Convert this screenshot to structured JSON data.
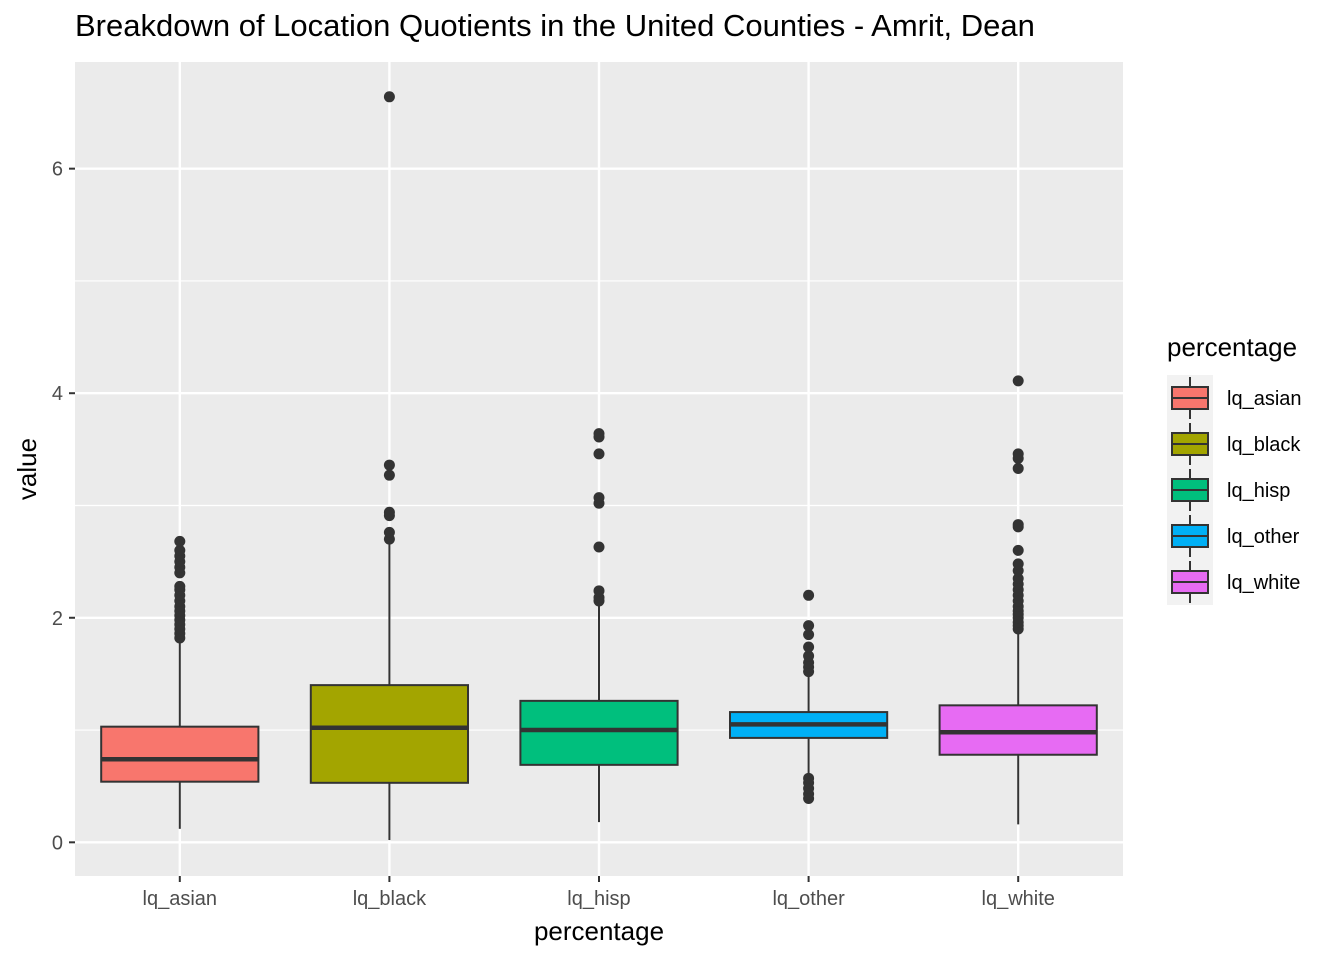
{
  "chart_data": {
    "type": "boxplot",
    "title": "Breakdown of Location Quotients in the United Counties - Amrit, Dean",
    "xlabel": "percentage",
    "ylabel": "value",
    "ylim": [
      -0.3,
      6.95
    ],
    "yticks": [
      0,
      2,
      4,
      6
    ],
    "grid": true,
    "legend": {
      "title": "percentage",
      "placement": "right"
    },
    "categories": [
      "lq_asian",
      "lq_black",
      "lq_hisp",
      "lq_other",
      "lq_white"
    ],
    "boxes": [
      {
        "name": "lq_asian",
        "color": "#F8766D",
        "whisker_low": 0.12,
        "q1": 0.54,
        "median": 0.74,
        "q3": 1.03,
        "whisker_high": 1.8,
        "outliers": [
          1.82,
          1.86,
          1.9,
          1.94,
          1.98,
          2.02,
          2.06,
          2.1,
          2.15,
          2.2,
          2.25,
          2.28,
          2.4,
          2.45,
          2.5,
          2.55,
          2.6,
          2.68
        ]
      },
      {
        "name": "lq_black",
        "color": "#A3A500",
        "whisker_low": 0.02,
        "q1": 0.53,
        "median": 1.02,
        "q3": 1.4,
        "whisker_high": 2.68,
        "outliers": [
          2.7,
          2.76,
          2.91,
          2.94,
          3.27,
          3.36,
          6.64
        ]
      },
      {
        "name": "lq_hisp",
        "color": "#00BF7D",
        "whisker_low": 0.18,
        "q1": 0.69,
        "median": 1.0,
        "q3": 1.26,
        "whisker_high": 2.12,
        "outliers": [
          2.15,
          2.18,
          2.24,
          2.63,
          3.02,
          3.07,
          3.46,
          3.61,
          3.64
        ]
      },
      {
        "name": "lq_other",
        "color": "#00B0F6",
        "whisker_low": 0.6,
        "q1": 0.93,
        "median": 1.05,
        "q3": 1.16,
        "whisker_high": 1.5,
        "outliers": [
          0.39,
          0.43,
          0.48,
          0.53,
          0.57,
          1.52,
          1.56,
          1.6,
          1.66,
          1.74,
          1.85,
          1.93,
          2.2
        ]
      },
      {
        "name": "lq_white",
        "color": "#E76BF3",
        "whisker_low": 0.16,
        "q1": 0.78,
        "median": 0.98,
        "q3": 1.22,
        "whisker_high": 1.88,
        "outliers": [
          1.9,
          1.93,
          1.96,
          2.0,
          2.03,
          2.06,
          2.1,
          2.15,
          2.2,
          2.25,
          2.3,
          2.35,
          2.42,
          2.48,
          2.6,
          2.81,
          2.83,
          3.33,
          3.42,
          3.46,
          4.11
        ]
      }
    ]
  }
}
